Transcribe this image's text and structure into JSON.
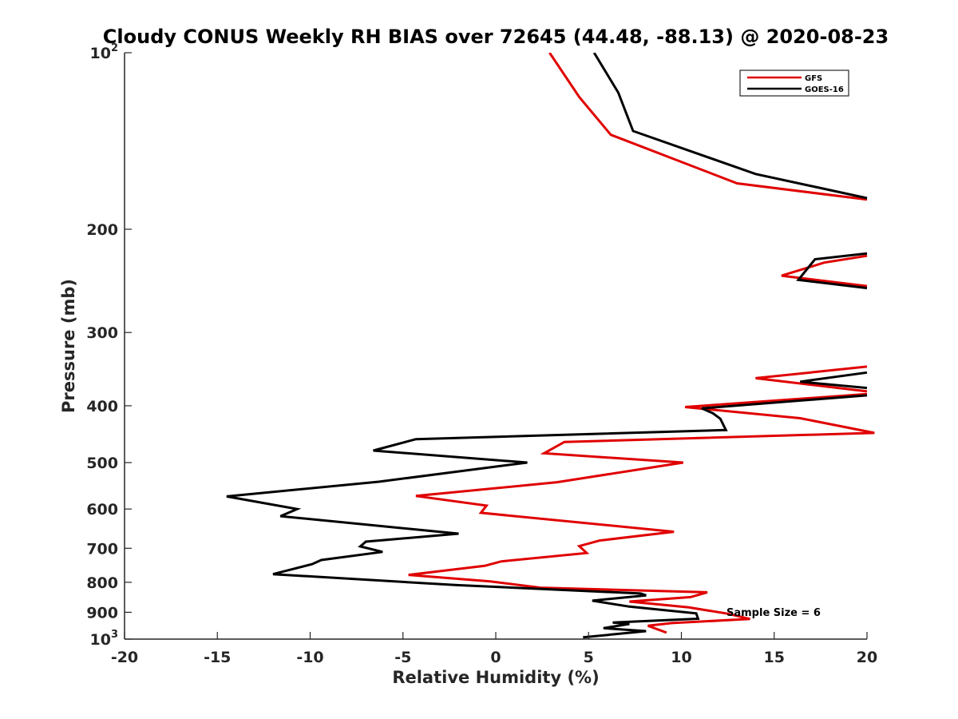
{
  "chart_data": {
    "type": "line",
    "title": "Cloudy CONUS Weekly RH BIAS over 72645 (44.48, -88.13) @ 2020-08-23",
    "xlabel": "Relative Humidity (%)",
    "ylabel": "Pressure (mb)",
    "xlim": [
      -20,
      20
    ],
    "ylim": [
      100,
      1000
    ],
    "y_scale": "log",
    "y_reversed": true,
    "grid": false,
    "legend_location": "top-right",
    "x_ticks": [
      {
        "value": -20,
        "label": "-20"
      },
      {
        "value": -15,
        "label": "-15"
      },
      {
        "value": -10,
        "label": "-10"
      },
      {
        "value": -5,
        "label": "-5"
      },
      {
        "value": 0,
        "label": "0"
      },
      {
        "value": 5,
        "label": "5"
      },
      {
        "value": 10,
        "label": "10"
      },
      {
        "value": 15,
        "label": "15"
      },
      {
        "value": 20,
        "label": "20"
      }
    ],
    "y_ticks": [
      {
        "value": 100,
        "base": "10",
        "exp": "2"
      },
      {
        "value": 200,
        "label": "200"
      },
      {
        "value": 300,
        "label": "300"
      },
      {
        "value": 400,
        "label": "400"
      },
      {
        "value": 500,
        "label": "500"
      },
      {
        "value": 600,
        "label": "600"
      },
      {
        "value": 700,
        "label": "700"
      },
      {
        "value": 800,
        "label": "800"
      },
      {
        "value": 900,
        "label": "900"
      },
      {
        "value": 1000,
        "base": "10",
        "exp": "3"
      }
    ],
    "annotation": "Sample Size = 6",
    "series": [
      {
        "name": "GFS",
        "color": "#e00000",
        "segments": [
          [
            [
              2.9,
              100
            ],
            [
              4.5,
              119
            ],
            [
              6.2,
              138
            ],
            [
              13,
              167
            ],
            [
              20,
              178
            ]
          ],
          [
            [
              20,
              222
            ],
            [
              17.7,
              228
            ],
            [
              15.4,
              240
            ],
            [
              20,
              250
            ]
          ],
          [
            [
              20,
              343
            ],
            [
              14,
              359
            ],
            [
              20,
              378
            ]
          ],
          [
            [
              20,
              382
            ],
            [
              10.2,
              402
            ],
            [
              16.4,
              420
            ],
            [
              20.4,
              445
            ],
            [
              3.7,
              461
            ],
            [
              2.6,
              482
            ],
            [
              10.1,
              500
            ],
            [
              3.3,
              540
            ],
            [
              -4.3,
              570
            ],
            [
              -0.5,
              592
            ],
            [
              -0.8,
              609
            ],
            [
              9.6,
              656
            ],
            [
              5.6,
              679
            ],
            [
              4.5,
              694
            ],
            [
              4.9,
              713
            ],
            [
              0.3,
              737
            ],
            [
              -0.6,
              750
            ],
            [
              -4.7,
              777
            ],
            [
              -0.3,
              797
            ],
            [
              2.4,
              817
            ],
            [
              11.4,
              832
            ],
            [
              10.5,
              848
            ],
            [
              7.2,
              863
            ],
            [
              10.4,
              883
            ],
            [
              12.5,
              905
            ],
            [
              13.7,
              924
            ],
            [
              9.5,
              939
            ],
            [
              8.2,
              949
            ],
            [
              9.2,
              975
            ]
          ]
        ]
      },
      {
        "name": "GOES-16",
        "color": "#000000",
        "segments": [
          [
            [
              5.3,
              100
            ],
            [
              6.6,
              117
            ],
            [
              7.4,
              136
            ],
            [
              14,
              161
            ],
            [
              20,
              177
            ]
          ],
          [
            [
              20,
              220
            ],
            [
              17.2,
              225
            ],
            [
              16.3,
              244
            ],
            [
              20,
              252
            ]
          ],
          [
            [
              20,
              351
            ],
            [
              16.4,
              364
            ],
            [
              20,
              373
            ]
          ],
          [
            [
              20,
              384
            ],
            [
              11.1,
              404
            ],
            [
              11.7,
              412
            ],
            [
              12.1,
              421
            ],
            [
              12.4,
              440
            ],
            [
              -4.3,
              456
            ],
            [
              -6.6,
              477
            ],
            [
              1.7,
              500
            ],
            [
              -6.3,
              539
            ],
            [
              -14.5,
              571
            ],
            [
              -10.7,
              600
            ],
            [
              -11.6,
              617
            ],
            [
              -2.0,
              661
            ],
            [
              -7.0,
              682
            ],
            [
              -7.3,
              695
            ],
            [
              -6.1,
              710
            ],
            [
              -9.4,
              733
            ],
            [
              -9.9,
              745
            ],
            [
              -12.0,
              775
            ],
            [
              -2.1,
              809
            ],
            [
              7.8,
              836
            ],
            [
              8.1,
              842
            ],
            [
              5.2,
              860
            ],
            [
              7.2,
              880
            ],
            [
              10.8,
              904
            ],
            [
              10.9,
              923
            ],
            [
              6.3,
              937
            ],
            [
              7.2,
              942
            ],
            [
              5.8,
              958
            ],
            [
              8.1,
              969
            ],
            [
              4.7,
              993
            ]
          ]
        ]
      }
    ]
  }
}
